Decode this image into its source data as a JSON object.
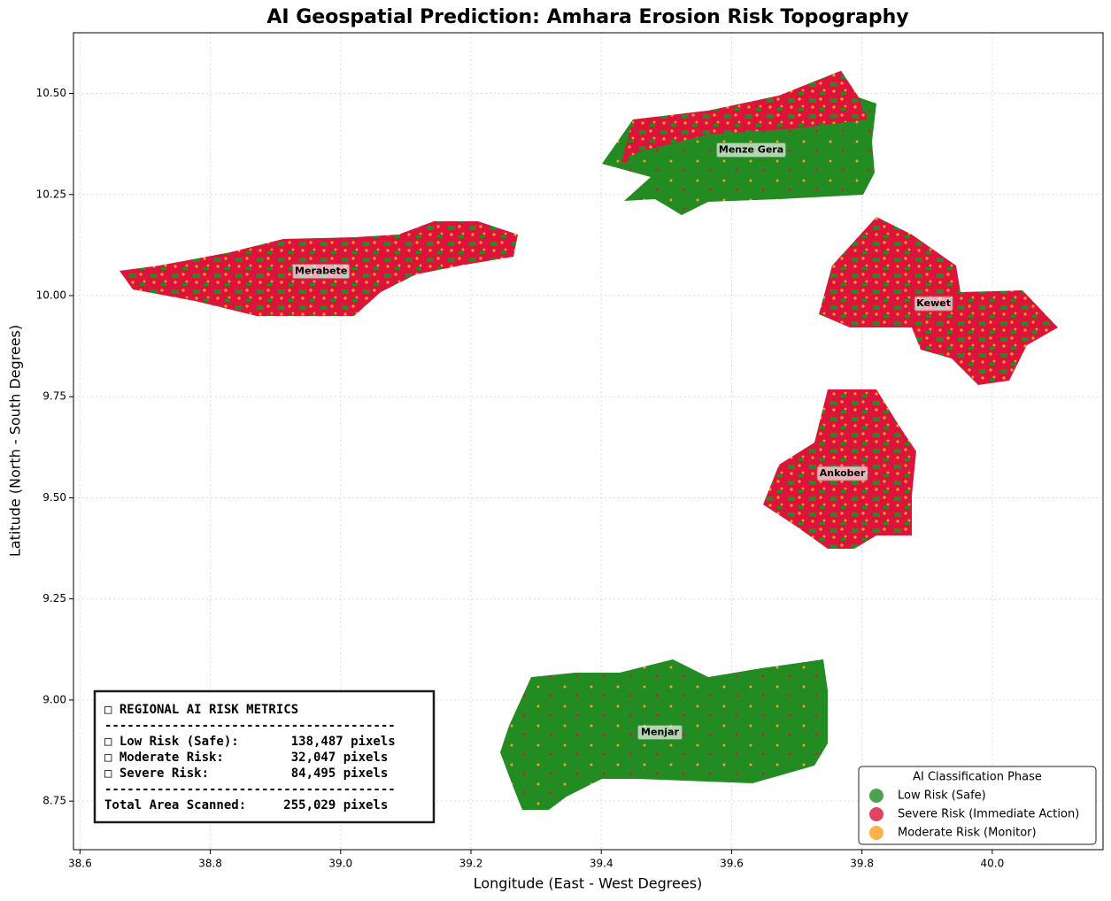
{
  "chart_data": {
    "type": "map",
    "title": "AI Geospatial Prediction: Amhara Erosion Risk Topography",
    "x_label": "Longitude (East - West Degrees)",
    "y_label": "Latitude (North - South Degrees)",
    "xlim": [
      38.59,
      40.17
    ],
    "ylim": [
      8.63,
      10.65
    ],
    "xticks": [
      38.6,
      38.8,
      {
        "value": 39,
        "label": "39.0"
      },
      39.2,
      39.4,
      39.6,
      39.8,
      {
        "value": 40,
        "label": "40.0"
      }
    ],
    "yticks": [
      8.75,
      {
        "value": 9,
        "label": "9.00"
      },
      9.25,
      {
        "value": 9.5,
        "label": "9.50"
      },
      9.75,
      {
        "value": 10,
        "label": "10.00"
      },
      10.25,
      {
        "value": 10.5,
        "label": "10.50"
      }
    ],
    "grid": true,
    "regions": [
      {
        "name": "Merabete",
        "x": 38.97,
        "y": 10.06
      },
      {
        "name": "Menze Gera",
        "x": 39.63,
        "y": 10.36
      },
      {
        "name": "Kewet",
        "x": 39.91,
        "y": 9.98
      },
      {
        "name": "Ankober",
        "x": 39.77,
        "y": 9.56
      },
      {
        "name": "Menjar",
        "x": 39.49,
        "y": 8.92
      }
    ],
    "legend": {
      "title": "AI Classification Phase",
      "position": "lower right",
      "entries": [
        {
          "name": "Low Risk (Safe)",
          "color": "#228b22"
        },
        {
          "name": "Severe Risk (Immediate Action)",
          "color": "#dc143c"
        },
        {
          "name": "Moderate Risk (Monitor)",
          "color": "#ff9f1c"
        }
      ]
    },
    "metrics_box": [
      "□ REGIONAL AI RISK METRICS",
      "---------------------------------------",
      "□ Low Risk (Safe):       138,487 pixels",
      "□ Moderate Risk:         32,047 pixels",
      "□ Severe Risk:           84,495 pixels",
      "---------------------------------------",
      "Total Area Scanned:     255,029 pixels"
    ]
  }
}
